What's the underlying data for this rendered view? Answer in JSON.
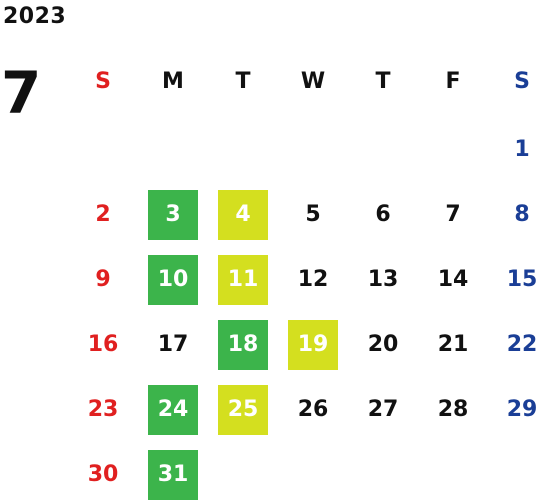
{
  "calendar": {
    "year": "2023",
    "month": "7",
    "weekdays": [
      "S",
      "M",
      "T",
      "W",
      "T",
      "F",
      "S"
    ],
    "colors": {
      "sunday": "#e02020",
      "saturday": "#1a3e96",
      "weekday": "#111111",
      "highlight_green": "#3cb44b",
      "highlight_yellow": "#d4df1f"
    },
    "start_weekday_index": 6,
    "days_in_month": 31,
    "highlights": {
      "green": [
        3,
        10,
        18,
        24,
        31
      ],
      "yellow": [
        4,
        11,
        19,
        25
      ]
    }
  }
}
